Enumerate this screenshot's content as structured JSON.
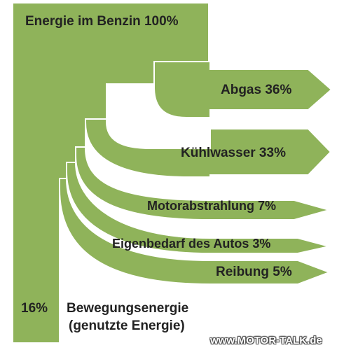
{
  "chart_data": {
    "type": "sankey",
    "source": {
      "label": "Energie im Benzin 100%",
      "value": 100
    },
    "flows": [
      {
        "label": "Abgas 36%",
        "value": 36
      },
      {
        "label": "Kühlwasser 33%",
        "value": 33
      },
      {
        "label": "Motorabstrahlung 7%",
        "value": 7
      },
      {
        "label": "Eigenbedarf des Autos 3%",
        "value": 3
      },
      {
        "label": "Reibung 5%",
        "value": 5
      }
    ],
    "useful": {
      "value": 16,
      "value_label": "16%",
      "label_line1": "Bewegungsenergie",
      "label_line2": "(genutzte Energie)"
    },
    "colors": {
      "fill": "#8fb35a",
      "stroke": "#ffffff"
    }
  },
  "watermark": "www.MOTOR-TALK.de"
}
